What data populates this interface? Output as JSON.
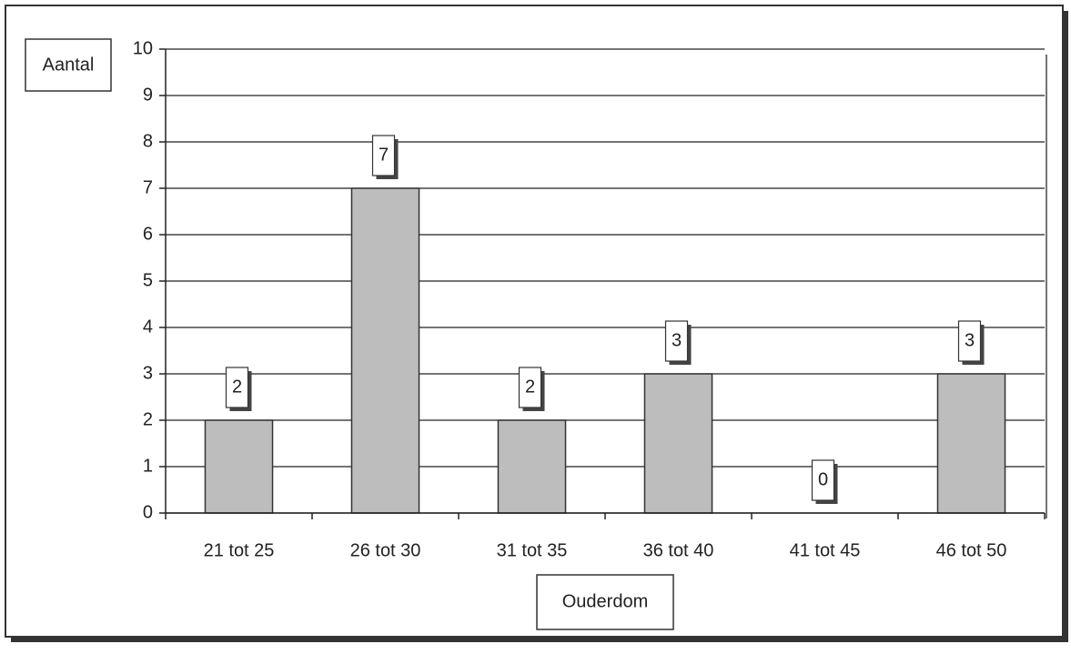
{
  "chart_data": {
    "type": "bar",
    "y_label": "Aantal",
    "x_label": "Ouderdom",
    "categories": [
      "21 tot 25",
      "26 tot 30",
      "31 tot 35",
      "36 tot 40",
      "41 tot 45",
      "46 tot 50"
    ],
    "values": [
      2,
      7,
      2,
      3,
      0,
      3
    ],
    "color": "#bdbdbd",
    "ylim": [
      0,
      10
    ],
    "yticks": [
      0,
      1,
      2,
      3,
      4,
      5,
      6,
      7,
      8,
      9,
      10
    ],
    "grid": true
  }
}
